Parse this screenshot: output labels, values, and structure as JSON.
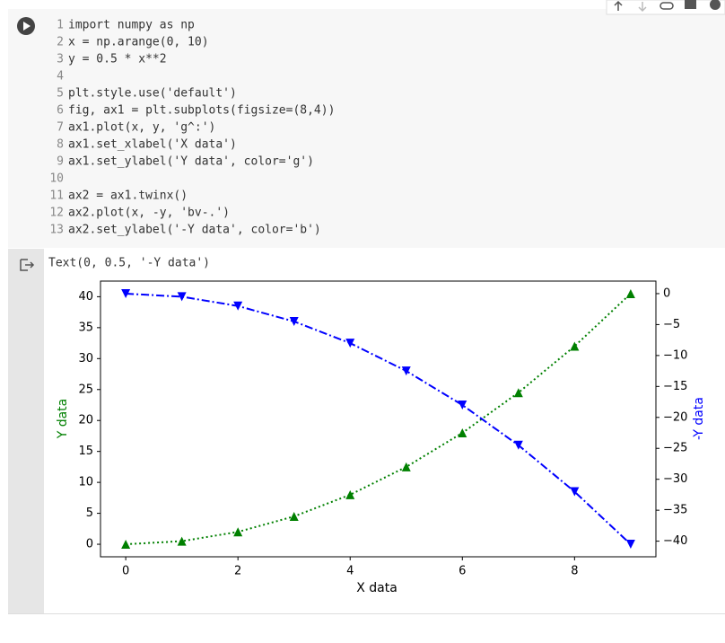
{
  "code": {
    "line_numbers": [
      1,
      2,
      3,
      4,
      5,
      6,
      7,
      8,
      9,
      10,
      11,
      12,
      13
    ],
    "lines": [
      "import numpy as np",
      "x = np.arange(0, 10)",
      "y = 0.5 * x**2",
      "",
      "plt.style.use('default')",
      "fig, ax1 = plt.subplots(figsize=(8,4))",
      "ax1.plot(x, y, 'g^:')",
      "ax1.set_xlabel('X data')",
      "ax1.set_ylabel('Y data', color='g')",
      "",
      "ax2 = ax1.twinx()",
      "ax2.plot(x, -y, 'bv-.')",
      "ax2.set_ylabel('-Y data', color='b')"
    ]
  },
  "output": {
    "text": "Text(0, 0.5, '-Y data')"
  },
  "chart_data": {
    "type": "line",
    "x": [
      0,
      1,
      2,
      3,
      4,
      5,
      6,
      7,
      8,
      9
    ],
    "xlabel": "X data",
    "ylabel": "Y data",
    "y2label": "-Y data",
    "series": [
      {
        "name": "y",
        "color": "#008000",
        "marker": "^",
        "linestyle": ":",
        "values": [
          0,
          0.5,
          2,
          4.5,
          8,
          12.5,
          18,
          24.5,
          32,
          40.5
        ]
      },
      {
        "name": "-y",
        "color": "#0000ff",
        "marker": "v",
        "linestyle": "-.",
        "axis": "y2",
        "values": [
          0,
          -0.5,
          -2,
          -4.5,
          -8,
          -12.5,
          -18,
          -24.5,
          -32,
          -40.5
        ]
      }
    ],
    "xlim": [
      -0.45,
      9.45
    ],
    "xticks": [
      0,
      2,
      4,
      6,
      8
    ],
    "ylim": [
      -2.025,
      42.525
    ],
    "yticks": [
      0,
      5,
      10,
      15,
      20,
      25,
      30,
      35,
      40
    ],
    "y2lim": [
      -42.525,
      2.025
    ],
    "y2ticks": [
      0,
      {
        "value": -5,
        "label": "−5"
      },
      {
        "value": -10,
        "label": "−10"
      },
      {
        "value": -15,
        "label": "−15"
      },
      {
        "value": -20,
        "label": "−20"
      },
      {
        "value": -25,
        "label": "−25"
      },
      {
        "value": -30,
        "label": "−30"
      },
      {
        "value": -35,
        "label": "−35"
      },
      {
        "value": -40,
        "label": "−40"
      }
    ]
  }
}
